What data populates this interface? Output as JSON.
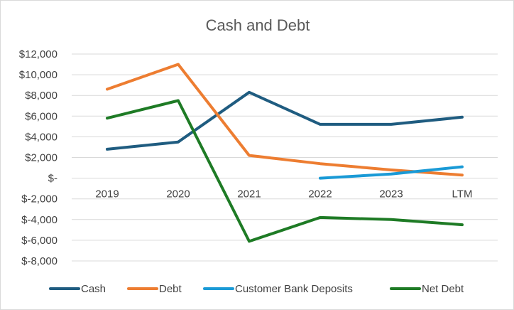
{
  "chart_data": {
    "type": "line",
    "title": "Cash and Debt",
    "xlabel": "",
    "ylabel": "",
    "categories": [
      "2019",
      "2020",
      "2021",
      "2022",
      "2023",
      "LTM"
    ],
    "ylim": [
      -8000,
      12000
    ],
    "yticks": [
      {
        "value": 12000,
        "label": "$12,000"
      },
      {
        "value": 10000,
        "label": "$10,000"
      },
      {
        "value": 8000,
        "label": "$8,000"
      },
      {
        "value": 6000,
        "label": "$6,000"
      },
      {
        "value": 4000,
        "label": "$4,000"
      },
      {
        "value": 2000,
        "label": "$2,000"
      },
      {
        "value": 0,
        "label": "$-"
      },
      {
        "value": -2000,
        "label": "$-2,000"
      },
      {
        "value": -4000,
        "label": "$-4,000"
      },
      {
        "value": -6000,
        "label": "$-6,000"
      },
      {
        "value": -8000,
        "label": "$-8,000"
      }
    ],
    "grid": true,
    "legend": "bottom",
    "series": [
      {
        "name": "Cash",
        "color": "#1f5c80",
        "values": [
          2800,
          3500,
          8300,
          5200,
          5200,
          5900
        ]
      },
      {
        "name": "Debt",
        "color": "#ed7d31",
        "values": [
          8600,
          11000,
          2200,
          1400,
          800,
          300
        ]
      },
      {
        "name": "Customer Bank Deposits",
        "color": "#1a9ad6",
        "values": [
          null,
          null,
          null,
          0,
          400,
          1100
        ]
      },
      {
        "name": "Net Debt",
        "color": "#1e7b25",
        "values": [
          5800,
          7500,
          -6100,
          -3800,
          -4000,
          -4500
        ]
      }
    ]
  }
}
